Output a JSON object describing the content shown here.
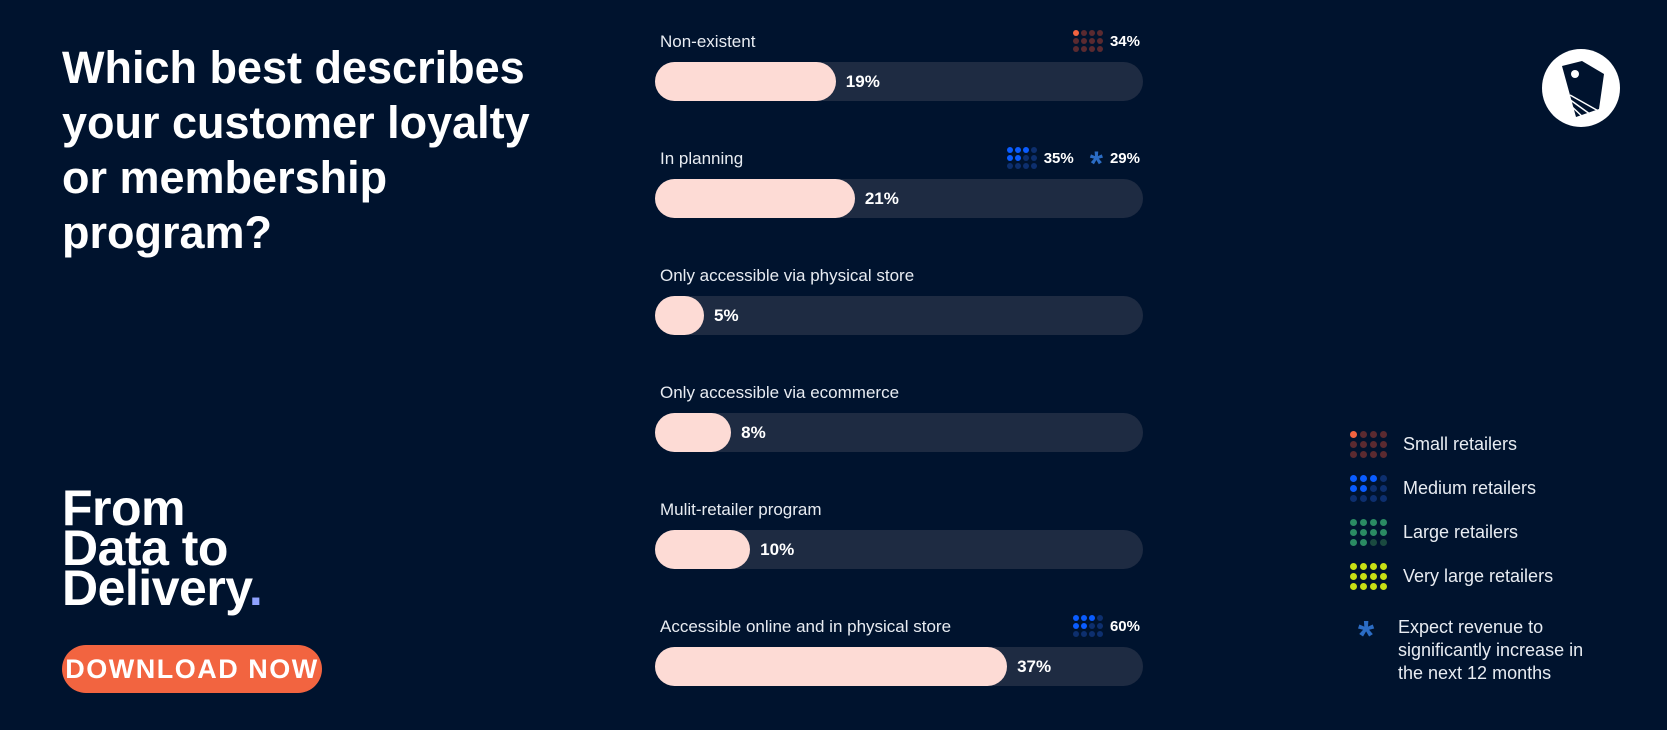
{
  "title": "Which best describes your customer loyalty or membership program?",
  "brand": {
    "line1": "From",
    "line2": "Data to",
    "line3": "Delivery",
    "dot": "."
  },
  "download_label": "DOWNLOAD NOW",
  "colors": {
    "bg": "#00132e",
    "track": "#1e2b42",
    "fill": "#fddbd5",
    "cta": "#f26440",
    "small": "#f26440",
    "medium": "#0a5cff",
    "large": "#2a8a63",
    "very_large": "#c8e014",
    "asterisk": "#2b6cc4"
  },
  "chart_data": {
    "type": "bar",
    "orientation": "horizontal",
    "categories": [
      "Non-existent",
      "In planning",
      "Only accessible via physical store",
      "Only accessible via ecommerce",
      "Mulit-retailer program",
      "Accessible online and in physical store"
    ],
    "values": [
      19,
      21,
      5,
      8,
      10,
      37
    ],
    "value_labels": [
      "19%",
      "21%",
      "5%",
      "8%",
      "10%",
      "37%"
    ],
    "xlim": [
      0,
      100
    ],
    "callouts": [
      [
        {
          "segment": "small",
          "value": "34%"
        }
      ],
      [
        {
          "segment": "medium",
          "value": "35%"
        },
        {
          "segment": "revenue",
          "value": "29%"
        }
      ],
      [],
      [],
      [],
      [
        {
          "segment": "medium",
          "value": "60%"
        }
      ]
    ]
  },
  "legend": [
    {
      "key": "small",
      "label": "Small retailers",
      "filled": 1
    },
    {
      "key": "medium",
      "label": "Medium retailers",
      "filled": 5
    },
    {
      "key": "large",
      "label": "Large retailers",
      "filled": 10
    },
    {
      "key": "very_large",
      "label": "Very large retailers",
      "filled": 12
    }
  ],
  "legend_note": "Expect revenue to significantly increase in the next 12 months"
}
